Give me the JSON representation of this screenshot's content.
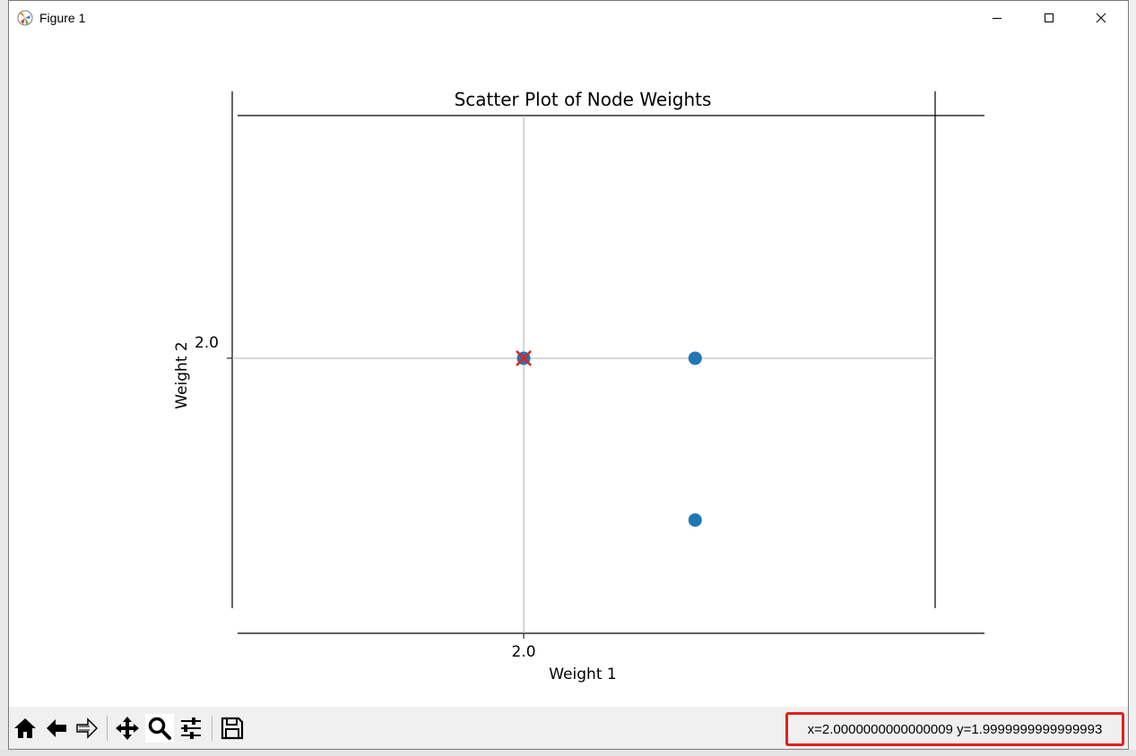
{
  "window": {
    "title": "Figure 1",
    "controls": {
      "minimize": "minimize",
      "maximize": "maximize",
      "close": "close"
    }
  },
  "toolbar": {
    "buttons": [
      {
        "name": "home",
        "icon": "home-icon"
      },
      {
        "name": "back",
        "icon": "arrow-left-icon"
      },
      {
        "name": "forward",
        "icon": "arrow-right-icon"
      },
      {
        "name": "pan",
        "icon": "move-icon"
      },
      {
        "name": "zoom",
        "icon": "magnifier-icon",
        "active": true
      },
      {
        "name": "configure-subplots",
        "icon": "sliders-icon"
      },
      {
        "name": "save",
        "icon": "save-icon"
      }
    ],
    "coordinates": "x=2.0000000000000009 y=1.9999999999999993"
  },
  "chart_data": {
    "type": "scatter",
    "title": "Scatter Plot of Node Weights",
    "xlabel": "Weight 1",
    "ylabel": "Weight 2",
    "x_ticks": [
      {
        "value": 2.0,
        "label": "2.0"
      }
    ],
    "y_ticks": [
      {
        "value": 2.0,
        "label": "2.0"
      }
    ],
    "xlim": [
      1.9983,
      2.0024
    ],
    "ylim": [
      1.9983,
      2.0015
    ],
    "grid": true,
    "series": [
      {
        "marker": "circle",
        "color": "#1f77b4",
        "points": [
          {
            "x": 2.0,
            "y": 2.0
          },
          {
            "x": 2.001,
            "y": 2.0
          },
          {
            "x": 2.001,
            "y": 1.999
          }
        ]
      },
      {
        "marker": "x",
        "color": "#e8201a",
        "points": [
          {
            "x": 2.0,
            "y": 2.0
          }
        ]
      }
    ]
  }
}
